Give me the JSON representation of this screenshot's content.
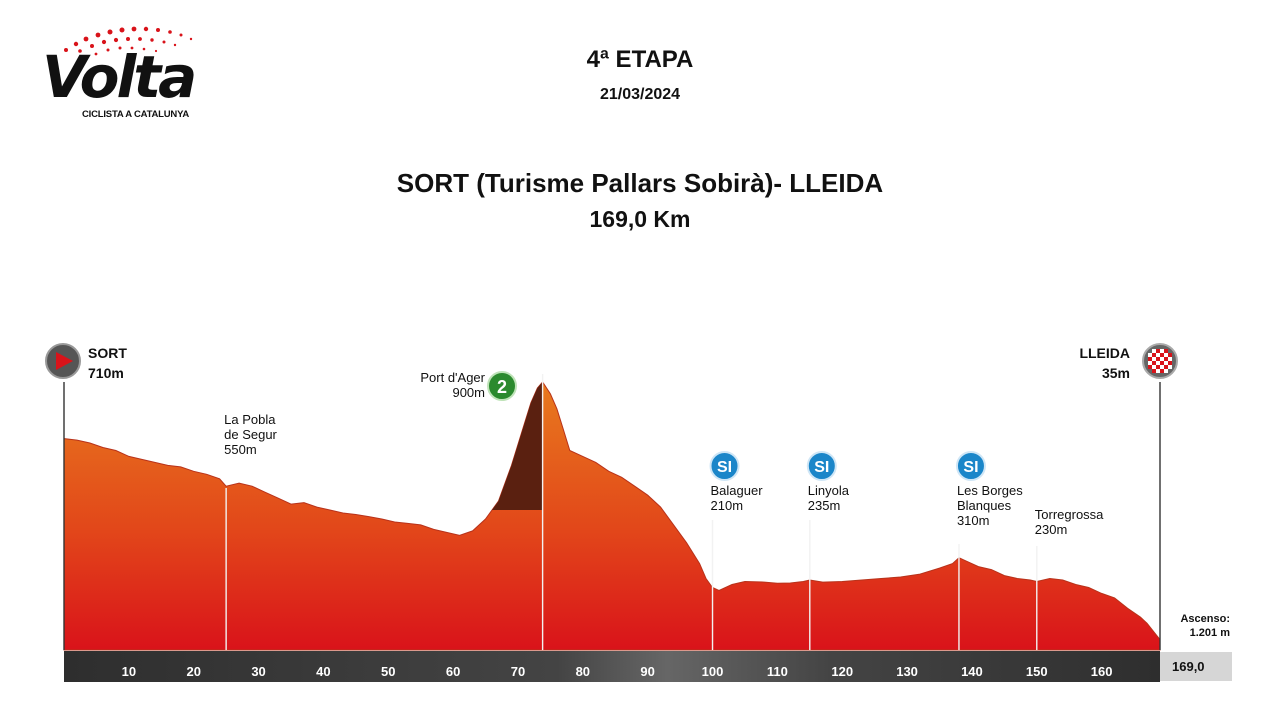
{
  "logo": {
    "word": "Volta",
    "subtitle": "CICLISTA A CATALUNYA"
  },
  "header": {
    "stage": "4ª ETAPA",
    "date": "21/03/2024",
    "route": "SORT (Turisme Pallars Sobirà)- LLEIDA",
    "distance": "169,0 Km"
  },
  "colors": {
    "profile_top": "#e87a1e",
    "profile_bottom": "#d9131a",
    "climb": "#5a2010",
    "sprint": "#1b86c9",
    "kom": "#2b8a2e",
    "axis_bar": "#333333"
  },
  "chart_data": {
    "type": "area",
    "title": "SORT (Turisme Pallars Sobirà)- LLEIDA",
    "xlabel": "",
    "ylabel": "",
    "xlim": [
      0,
      169
    ],
    "x_ticks": [
      10,
      20,
      30,
      40,
      50,
      60,
      70,
      80,
      90,
      100,
      110,
      120,
      130,
      140,
      150,
      160
    ],
    "total_km": "169,0",
    "ascent_label": "Ascenso:",
    "ascent_value": "1.201 m",
    "profile": {
      "x": [
        0,
        2,
        4,
        6,
        8,
        10,
        12,
        14,
        16,
        18,
        20,
        22,
        24,
        25,
        27,
        29,
        31,
        33,
        35,
        37,
        39,
        41,
        43,
        45,
        47,
        49,
        51,
        53,
        55,
        57,
        59,
        61,
        63,
        65,
        67,
        69,
        71,
        72,
        73,
        73.8,
        75,
        76,
        77,
        78,
        80,
        82,
        84,
        86,
        88,
        90,
        92,
        94,
        96,
        98,
        99,
        100,
        101,
        103,
        105,
        108,
        110,
        112,
        114,
        115,
        117,
        120,
        123,
        126,
        129,
        132,
        135,
        137,
        138,
        139,
        141,
        143,
        145,
        147,
        149,
        150,
        152,
        154,
        156,
        158,
        160,
        162,
        164,
        166,
        167,
        169
      ],
      "y": [
        710,
        705,
        695,
        680,
        670,
        650,
        640,
        630,
        620,
        615,
        600,
        590,
        575,
        550,
        560,
        550,
        530,
        510,
        490,
        495,
        480,
        470,
        460,
        455,
        448,
        440,
        430,
        425,
        420,
        405,
        395,
        385,
        400,
        440,
        500,
        620,
        760,
        830,
        880,
        900,
        860,
        810,
        740,
        670,
        650,
        630,
        600,
        580,
        550,
        520,
        480,
        420,
        360,
        290,
        240,
        210,
        200,
        220,
        230,
        228,
        224,
        225,
        230,
        235,
        228,
        230,
        235,
        240,
        245,
        255,
        275,
        290,
        310,
        300,
        280,
        270,
        250,
        240,
        235,
        230,
        240,
        235,
        220,
        210,
        190,
        175,
        140,
        110,
        90,
        35
      ]
    },
    "climb": {
      "name": "Port d'Ager",
      "category": "2",
      "start_km": 66,
      "summit_km": 73.8
    },
    "locations": [
      {
        "km": 0,
        "lines": [
          "SORT",
          "710m"
        ],
        "type": "start"
      },
      {
        "km": 25,
        "lines": [
          "La Pobla",
          "de Segur",
          "550m"
        ],
        "type": "town"
      },
      {
        "km": 73.8,
        "lines": [
          "Port d'Ager",
          "900m"
        ],
        "type": "kom"
      },
      {
        "km": 100,
        "lines": [
          "Balaguer",
          "210m"
        ],
        "type": "sprint"
      },
      {
        "km": 115,
        "lines": [
          "Linyola",
          "235m"
        ],
        "type": "sprint"
      },
      {
        "km": 138,
        "lines": [
          "Les Borges",
          "Blanques",
          "310m"
        ],
        "type": "sprint"
      },
      {
        "km": 150,
        "lines": [
          "Torregrossa",
          "230m"
        ],
        "type": "town"
      },
      {
        "km": 169,
        "lines": [
          "LLEIDA",
          "35m"
        ],
        "type": "finish"
      }
    ],
    "sprint_badge": "SI"
  }
}
